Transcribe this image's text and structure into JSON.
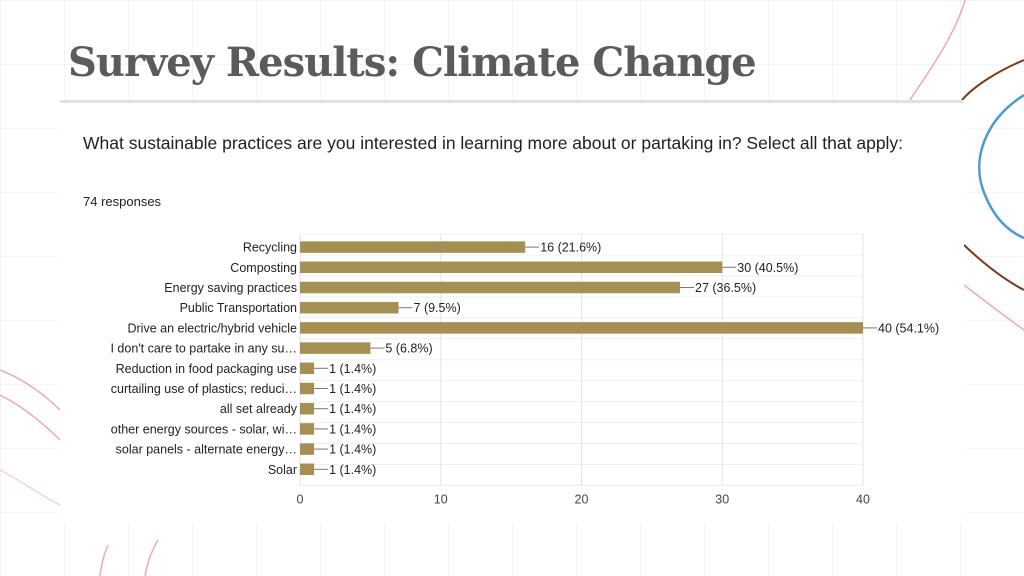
{
  "slide": {
    "title": "Survey Results: Climate Change"
  },
  "form": {
    "question": "What sustainable practices are you interested in learning more about or partaking in? Select all that apply:",
    "responses": "74 responses"
  },
  "colors": {
    "bar": "#a68f52",
    "title": "#5b5b5b",
    "accent_blue": "#4a9ad4",
    "accent_brown": "#7a3b17",
    "accent_pink": "#f0a9a9"
  },
  "chart_data": {
    "type": "bar",
    "orientation": "horizontal",
    "categories": [
      "Recycling",
      "Composting",
      "Energy saving practices",
      "Public Transportation",
      "Drive an electric/hybrid vehicle",
      "I don't care to partake in any su…",
      "Reduction in food packaging use",
      "curtailing use of plastics; reduci…",
      "all set already",
      "other energy sources - solar, wi…",
      "solar panels - alternate energy…",
      "Solar"
    ],
    "values": [
      16,
      30,
      27,
      7,
      40,
      5,
      1,
      1,
      1,
      1,
      1,
      1
    ],
    "value_labels": [
      "16 (21.6%)",
      "30 (40.5%)",
      "27 (36.5%)",
      "7 (9.5%)",
      "40 (54.1%)",
      "5 (6.8%)",
      "1 (1.4%)",
      "1 (1.4%)",
      "1 (1.4%)",
      "1 (1.4%)",
      "1 (1.4%)",
      "1 (1.4%)"
    ],
    "xlim": [
      0,
      40
    ],
    "xticks": [
      "0",
      "10",
      "20",
      "30",
      "40"
    ],
    "grid": true
  }
}
